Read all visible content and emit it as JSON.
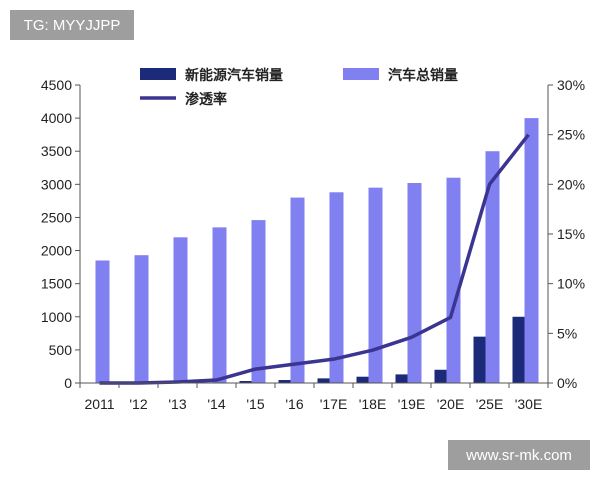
{
  "watermarks": {
    "top": "TG: MYYJJPP",
    "bottom": "www.sr-mk.com"
  },
  "colors": {
    "total_bar": "#8080f0",
    "nev_bar": "#1c2a7a",
    "penetration_line": "#3a3590",
    "axis": "#555555"
  },
  "chart_data": {
    "type": "bar",
    "categories": [
      "2011",
      "'12",
      "'13",
      "'14",
      "'15",
      "'16",
      "'17E",
      "'18E",
      "'19E",
      "'20E",
      "'25E",
      "'30E"
    ],
    "series": [
      {
        "name": "新能源汽车销量",
        "type": "bar",
        "axis": "left",
        "values": [
          0,
          0,
          0,
          10,
          30,
          45,
          70,
          95,
          130,
          200,
          700,
          1000
        ]
      },
      {
        "name": "汽车总销量",
        "type": "bar",
        "axis": "left",
        "values": [
          1850,
          1930,
          2200,
          2350,
          2460,
          2800,
          2880,
          2950,
          3020,
          3100,
          3500,
          4000
        ]
      },
      {
        "name": "渗透率",
        "type": "line",
        "axis": "right",
        "values": [
          0.0,
          0.0,
          0.1,
          0.3,
          1.4,
          1.9,
          2.4,
          3.3,
          4.6,
          6.6,
          20.0,
          25.0
        ]
      }
    ],
    "ylim_left": [
      0,
      4500
    ],
    "yticks_left": [
      0,
      500,
      1000,
      1500,
      2000,
      2500,
      3000,
      3500,
      4000,
      4500
    ],
    "ylim_right": [
      0,
      30
    ],
    "yticks_right_labels": [
      "0%",
      "5%",
      "10%",
      "15%",
      "20%",
      "25%",
      "30%"
    ],
    "legend_position": "top",
    "grid": false
  }
}
